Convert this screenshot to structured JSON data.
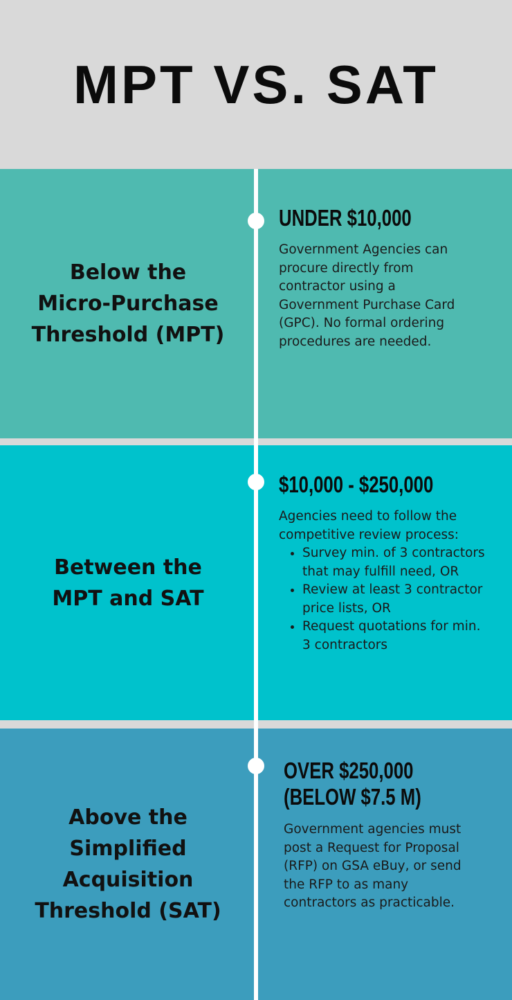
{
  "title": "MPT VS. SAT",
  "colors": {
    "background": "#d9d9d9",
    "mpt_section": "#4fbab0",
    "between_section": "#00c2cc",
    "sat_section": "#3c9dbd",
    "timeline": "#ffffff"
  },
  "sections": [
    {
      "label_lines": [
        "Below the",
        "Micro-Purchase",
        "Threshold (MPT)"
      ],
      "heading_lines": [
        "UNDER $10,000"
      ],
      "body": "Government Agencies can procure directly from contractor using a Government Purchase Card (GPC). No formal ordering procedures are needed."
    },
    {
      "label_lines": [
        "Between the",
        "MPT and SAT"
      ],
      "heading_lines": [
        "$10,000 - $250,000"
      ],
      "body": "Agencies need to follow the competitive review process:",
      "bullets": [
        "Survey min. of 3 contractors that may fulfill need, OR",
        "Review at least 3 contractor price lists, OR",
        "Request quotations for min. 3 contractors"
      ]
    },
    {
      "label_lines": [
        "Above the",
        "Simplified",
        "Acquisition",
        "Threshold (SAT)"
      ],
      "heading_lines": [
        "OVER $250,000",
        "(BELOW $7.5 M)"
      ],
      "body": "Government agencies must post a Request for Proposal (RFP) on GSA eBuy, or send the RFP to as many contractors as practicable."
    }
  ]
}
